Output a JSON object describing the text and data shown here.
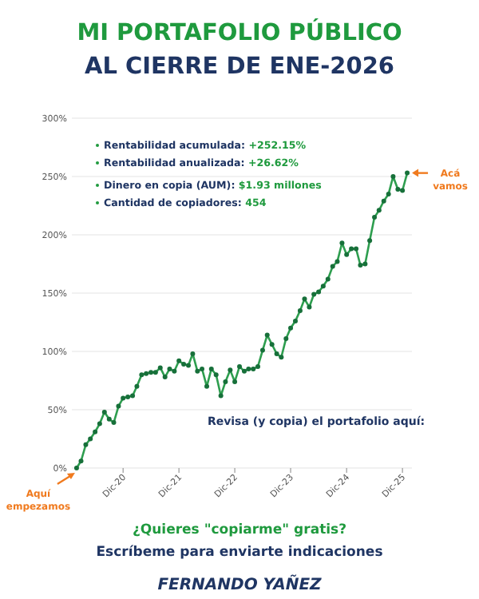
{
  "chart_data": {
    "type": "line",
    "title": "MI PORTAFOLIO PÚBLICO",
    "subtitle": "AL CIERRE DE ENE-2026",
    "x": [
      "2020-02",
      "2020-03",
      "2020-04",
      "2020-05",
      "2020-06",
      "2020-07",
      "2020-08",
      "2020-09",
      "2020-10",
      "2020-11",
      "2020-12",
      "2021-01",
      "2021-02",
      "2021-03",
      "2021-04",
      "2021-05",
      "2021-06",
      "2021-07",
      "2021-08",
      "2021-09",
      "2021-10",
      "2021-11",
      "2021-12",
      "2022-01",
      "2022-02",
      "2022-03",
      "2022-04",
      "2022-05",
      "2022-06",
      "2022-07",
      "2022-08",
      "2022-09",
      "2022-10",
      "2022-11",
      "2022-12",
      "2023-01",
      "2023-02",
      "2023-03",
      "2023-04",
      "2023-05",
      "2023-06",
      "2023-07",
      "2023-08",
      "2023-09",
      "2023-10",
      "2023-11",
      "2023-12",
      "2024-01",
      "2024-02",
      "2024-03",
      "2024-04",
      "2024-05",
      "2024-06",
      "2024-07",
      "2024-08",
      "2024-09",
      "2024-10",
      "2024-11",
      "2024-12",
      "2025-01",
      "2025-02",
      "2025-03",
      "2025-04",
      "2025-05",
      "2025-06",
      "2025-07",
      "2025-08",
      "2025-09",
      "2025-10",
      "2025-11",
      "2025-12",
      "2026-01"
    ],
    "series": [
      {
        "color": "#2e9e4f",
        "values": [
          0,
          6,
          20,
          25,
          31,
          38,
          48,
          42,
          39,
          53,
          60,
          61,
          62,
          70,
          80,
          81,
          82,
          82,
          86,
          78,
          85,
          83,
          92,
          89,
          88,
          98,
          83,
          85,
          70,
          85,
          80,
          62,
          74,
          84,
          74,
          87,
          83,
          85,
          85,
          87,
          101,
          114,
          106,
          98,
          95,
          111,
          120,
          126,
          135,
          145,
          138,
          149,
          151,
          156,
          162,
          173,
          177,
          193,
          183,
          188,
          188,
          174,
          175,
          195,
          215,
          221,
          229,
          235,
          250,
          239,
          238,
          253
        ]
      }
    ],
    "xlim": [
      "2020-01",
      "2026-02"
    ],
    "xticks": [
      {
        "value": "2020-12",
        "label": "Dic-20"
      },
      {
        "value": "2021-12",
        "label": "Dic-21"
      },
      {
        "value": "2022-12",
        "label": "Dic-22"
      },
      {
        "value": "2023-12",
        "label": "Dic-23"
      },
      {
        "value": "2024-12",
        "label": "Dic-24"
      },
      {
        "value": "2025-12",
        "label": "Dic-25"
      }
    ],
    "ylim": [
      0,
      300
    ],
    "yticks": [
      {
        "value": 0,
        "label": "0%"
      },
      {
        "value": 50,
        "label": "50%"
      },
      {
        "value": 100,
        "label": "100%"
      },
      {
        "value": 150,
        "label": "150%"
      },
      {
        "value": 200,
        "label": "200%"
      },
      {
        "value": 250,
        "label": "250%"
      },
      {
        "value": 300,
        "label": "300%"
      }
    ],
    "grid": "y",
    "marker": "circle",
    "line_style": "solid",
    "annotations": [
      "Rentabilidad acumulada: +252.15%",
      "Rentabilidad anualizada: +26.62%",
      "Dinero en copia (AUM): $1.93 millones",
      "Cantidad de copiadores: 454",
      "Revisa (y copia) el portafolio aquí:",
      {
        "text": "Acá vamos",
        "x": "2026-01",
        "y": 253
      },
      {
        "text": "Aquí empezamos",
        "x": "2020-02",
        "y": 0
      },
      "¿Quieres \"copiarme\" gratis?",
      "Escríbeme para enviarte indicaciones",
      "FERNANDO YAÑEZ"
    ]
  }
}
